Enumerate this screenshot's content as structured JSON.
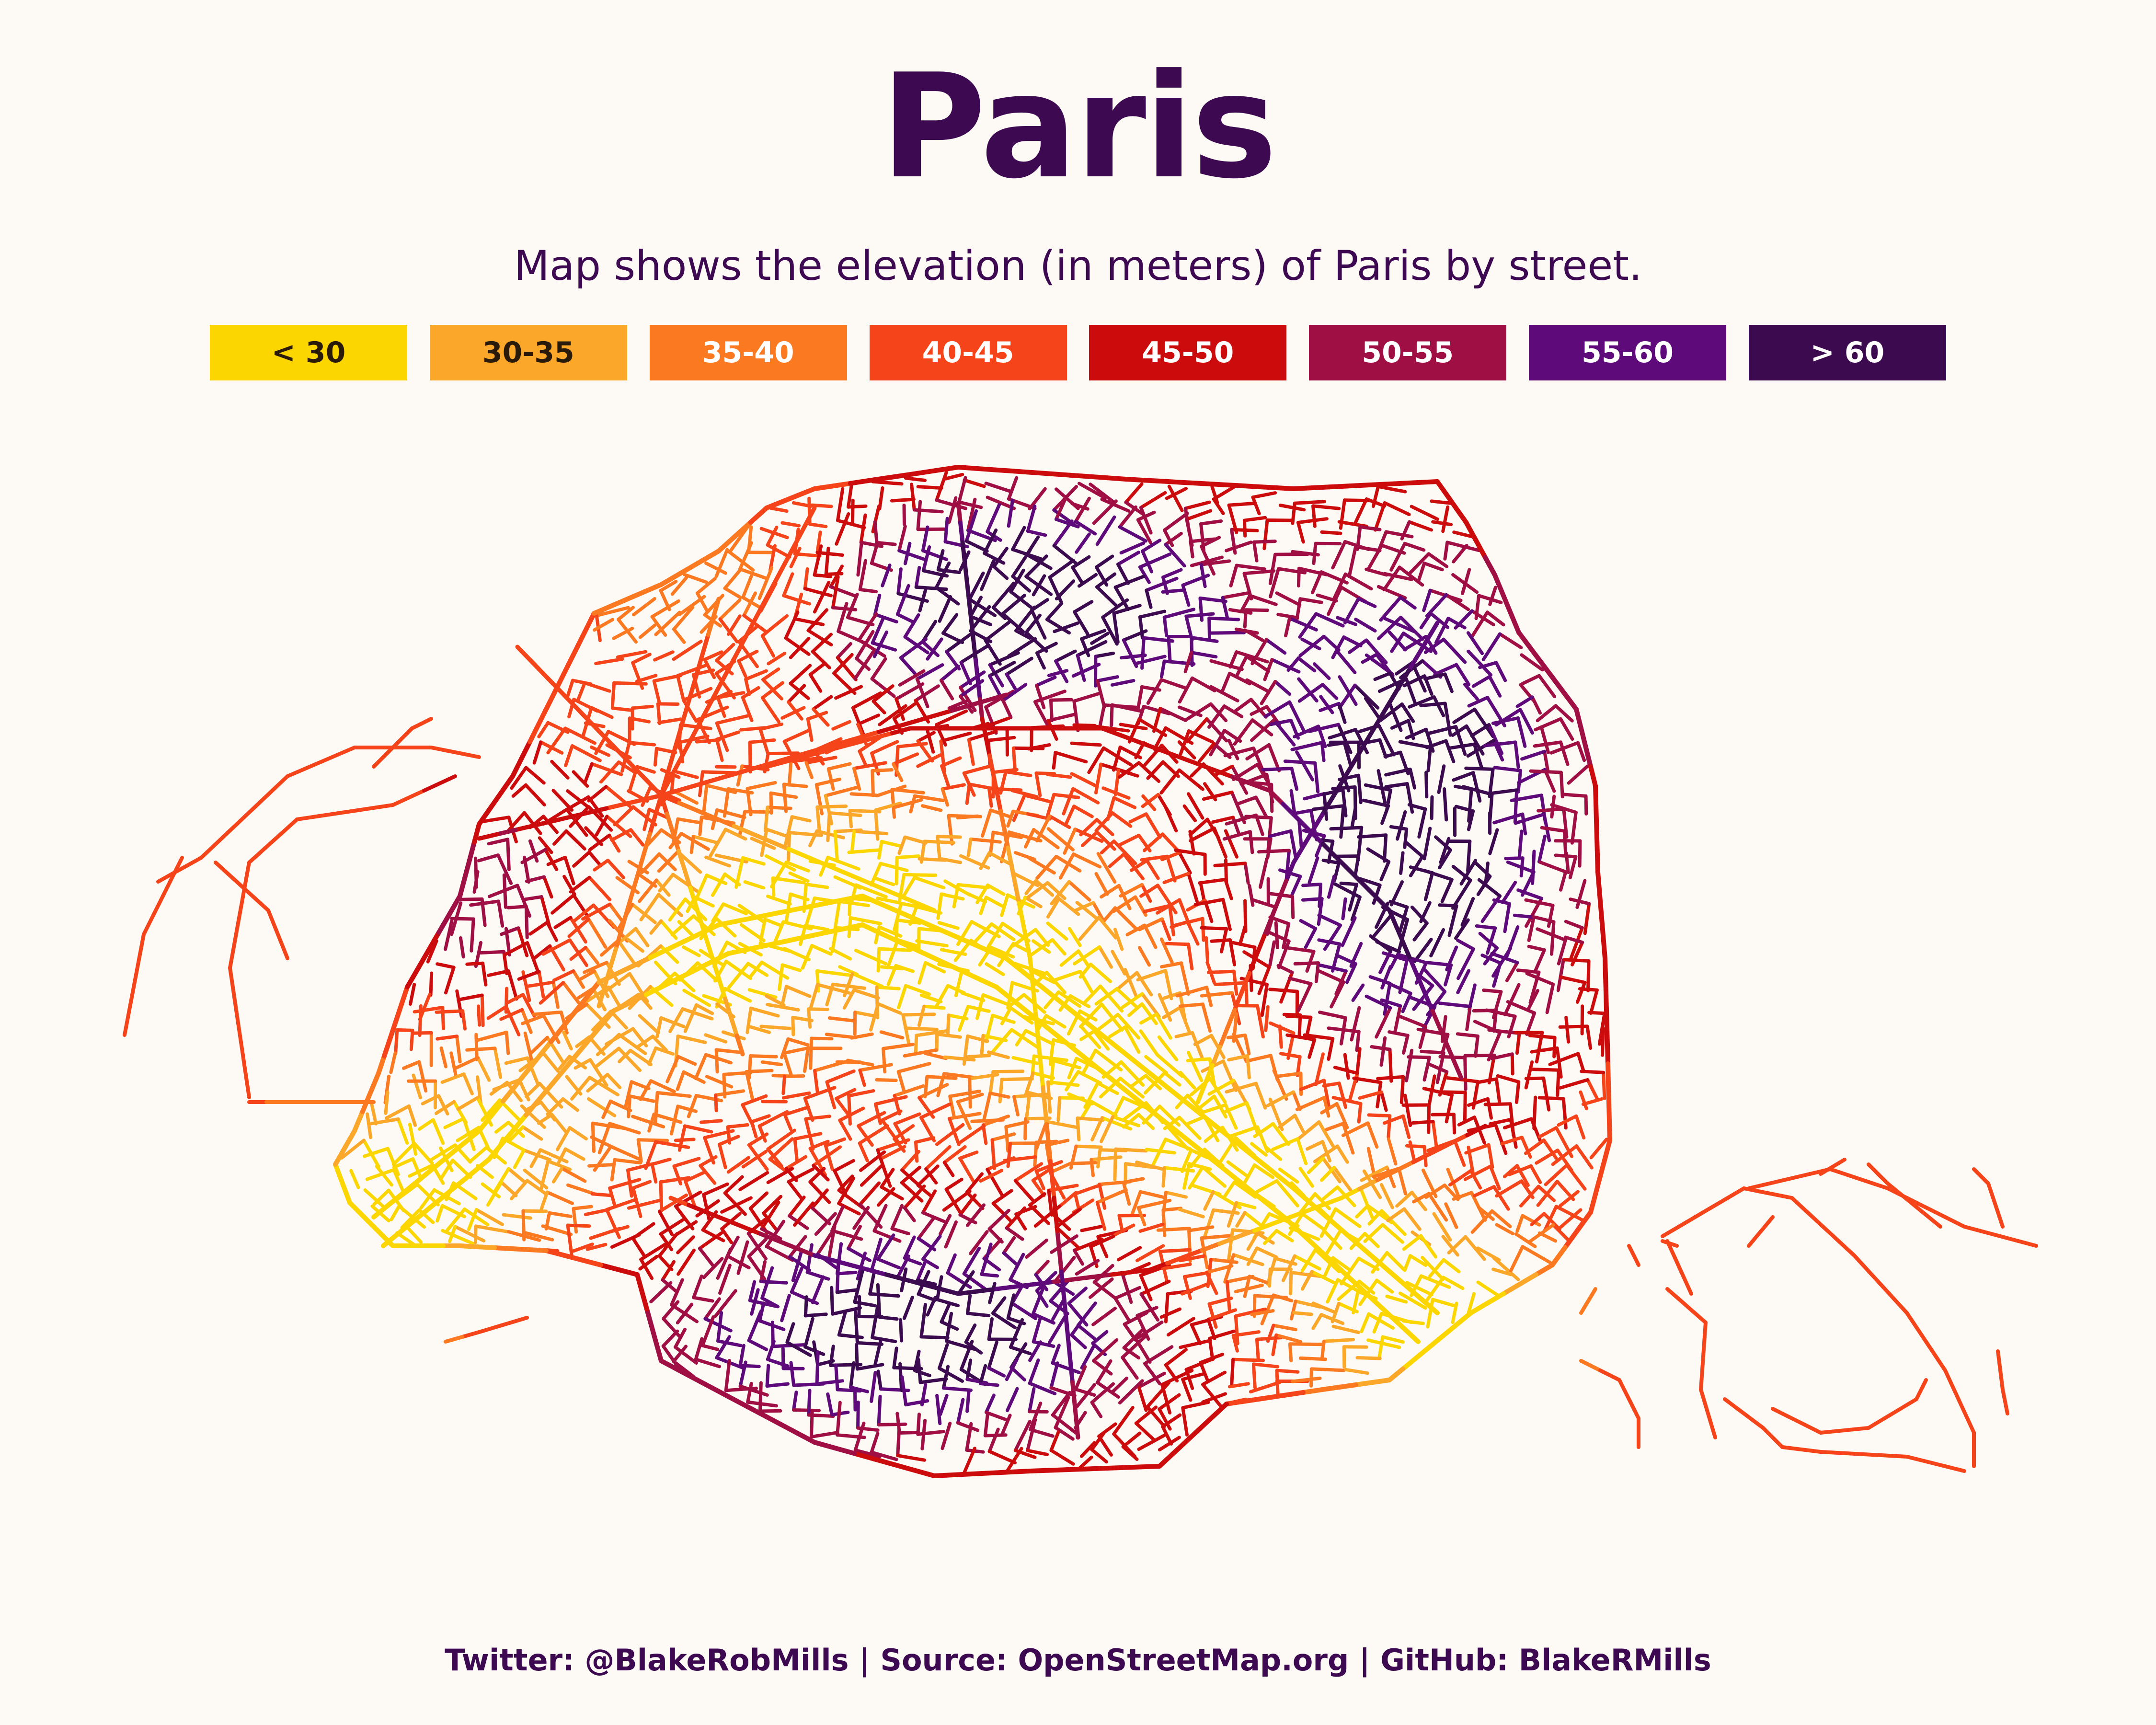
{
  "title": "Paris",
  "subtitle": "Map shows the elevation (in meters) of Paris by street.",
  "legend": {
    "items": [
      {
        "label": "< 30",
        "color": "#fcd600",
        "text_color": "#2a1a0a"
      },
      {
        "label": "30-35",
        "color": "#fba82a",
        "text_color": "#2a1a0a"
      },
      {
        "label": "35-40",
        "color": "#fb7a21",
        "text_color": "#ffffff"
      },
      {
        "label": "40-45",
        "color": "#f5441a",
        "text_color": "#ffffff"
      },
      {
        "label": "45-50",
        "color": "#cc0c0c",
        "text_color": "#ffffff"
      },
      {
        "label": "50-55",
        "color": "#a00f44",
        "text_color": "#ffffff"
      },
      {
        "label": "55-60",
        "color": "#5e0a7a",
        "text_color": "#ffffff"
      },
      {
        "label": "> 60",
        "color": "#3b0a4f",
        "text_color": "#ffffff"
      }
    ]
  },
  "footer": "Twitter: @BlakeRobMills | Source: OpenStreetMap.org | GitHub: BlakeRMills"
}
